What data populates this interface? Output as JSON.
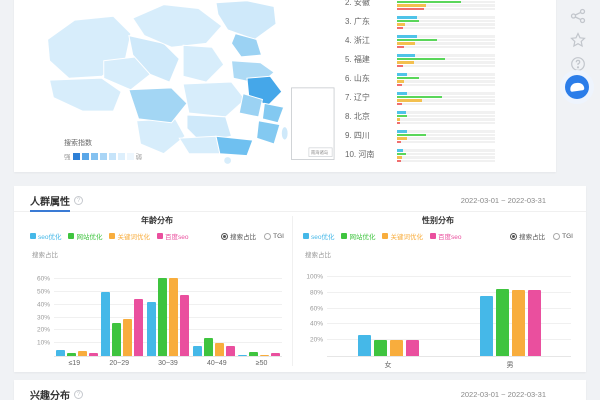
{
  "map": {
    "legend_title": "搜索指数",
    "legend_high": "强",
    "legend_low": "弱",
    "legend_colors": [
      "#2d7fd6",
      "#5aa7e8",
      "#84c1f0",
      "#a9d5f6",
      "#c6e4fa",
      "#ddeffc",
      "#eef7fe"
    ],
    "inset_label": "南海诸岛"
  },
  "region_list": {
    "bar_colors": [
      "#4fc3e8",
      "#5ad65a",
      "#f3c04f",
      "#f06e6e"
    ],
    "items": [
      {
        "rank": "2.",
        "name": "安徽",
        "values": [
          26,
          65,
          30,
          28
        ]
      },
      {
        "rank": "3.",
        "name": "广东",
        "values": [
          20,
          22,
          8,
          6
        ]
      },
      {
        "rank": "4.",
        "name": "浙江",
        "values": [
          20,
          41,
          18,
          7
        ]
      },
      {
        "rank": "5.",
        "name": "福建",
        "values": [
          18,
          49,
          17,
          6
        ]
      },
      {
        "rank": "6.",
        "name": "山东",
        "values": [
          10,
          22,
          7,
          5
        ]
      },
      {
        "rank": "7.",
        "name": "辽宁",
        "values": [
          10,
          46,
          25,
          5
        ]
      },
      {
        "rank": "8.",
        "name": "北京",
        "values": [
          9,
          10,
          3,
          3
        ]
      },
      {
        "rank": "9.",
        "name": "四川",
        "values": [
          10,
          30,
          10,
          4
        ]
      },
      {
        "rank": "10.",
        "name": "河南",
        "values": [
          6,
          9,
          5,
          4
        ]
      }
    ]
  },
  "sections": {
    "demographics": {
      "title": "人群属性",
      "date_range": "2022-03-01 ~ 2022-03-31"
    },
    "interest": {
      "title": "兴趣分布",
      "date_range": "2022-03-01 ~ 2022-03-31"
    }
  },
  "radios": {
    "options": [
      "搜索占比",
      "TGI"
    ],
    "selected": "搜索占比"
  },
  "chart_data": [
    {
      "type": "bar",
      "title": "年龄分布",
      "categories": [
        "≤19",
        "20~29",
        "30~39",
        "40~49",
        "≥50"
      ],
      "series": [
        {
          "name": "seo优化",
          "color": "#45b8e8",
          "values": [
            5,
            50,
            42,
            8,
            1
          ]
        },
        {
          "name": "网站优化",
          "color": "#3fc43f",
          "values": [
            2,
            26,
            61,
            14,
            3
          ]
        },
        {
          "name": "关键词优化",
          "color": "#f8ad3d",
          "values": [
            4,
            29,
            61,
            10,
            1
          ]
        },
        {
          "name": "百度seo",
          "color": "#ea4f9e",
          "values": [
            2,
            45,
            48,
            8,
            2
          ]
        }
      ],
      "ylabel": "搜索占比",
      "yticks": [
        "10%",
        "20%",
        "30%",
        "40%",
        "50%",
        "60%"
      ],
      "ylim": [
        0,
        65
      ],
      "grid": true,
      "legend_position": "top"
    },
    {
      "type": "bar",
      "title": "性别分布",
      "categories": [
        "女",
        "男"
      ],
      "series": [
        {
          "name": "seo优化",
          "color": "#45b8e8",
          "values": [
            27,
            76
          ]
        },
        {
          "name": "网站优化",
          "color": "#3fc43f",
          "values": [
            20,
            85
          ]
        },
        {
          "name": "关键词优化",
          "color": "#f8ad3d",
          "values": [
            20,
            83
          ]
        },
        {
          "name": "百度seo",
          "color": "#ea4f9e",
          "values": [
            20,
            83
          ]
        }
      ],
      "ylabel": "搜索占比",
      "yticks": [
        "20%",
        "40%",
        "60%",
        "80%",
        "100%"
      ],
      "ylim": [
        0,
        105
      ],
      "grid": true,
      "legend_position": "top"
    }
  ]
}
